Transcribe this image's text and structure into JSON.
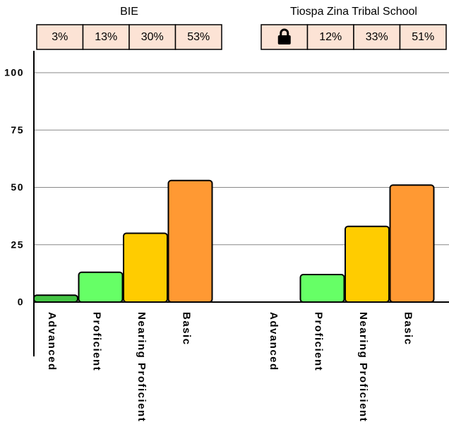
{
  "chart_data": {
    "type": "bar",
    "categories": [
      "Advanced",
      "Proficient",
      "Nearing Proficient",
      "Basic"
    ],
    "colors": [
      "#44c444",
      "#66ff66",
      "#ffcc00",
      "#ff9933"
    ],
    "series": [
      {
        "name": "BIE",
        "values": [
          3,
          13,
          30,
          53
        ],
        "value_labels": [
          "3%",
          "13%",
          "30%",
          "53%"
        ]
      },
      {
        "name": "Tiospa Zina Tribal School",
        "values": [
          null,
          12,
          33,
          51
        ],
        "value_labels": [
          null,
          "12%",
          "33%",
          "51%"
        ]
      }
    ],
    "ylim": [
      0,
      100
    ],
    "yticks": [
      0,
      25,
      50,
      75,
      100
    ],
    "grid": true
  }
}
